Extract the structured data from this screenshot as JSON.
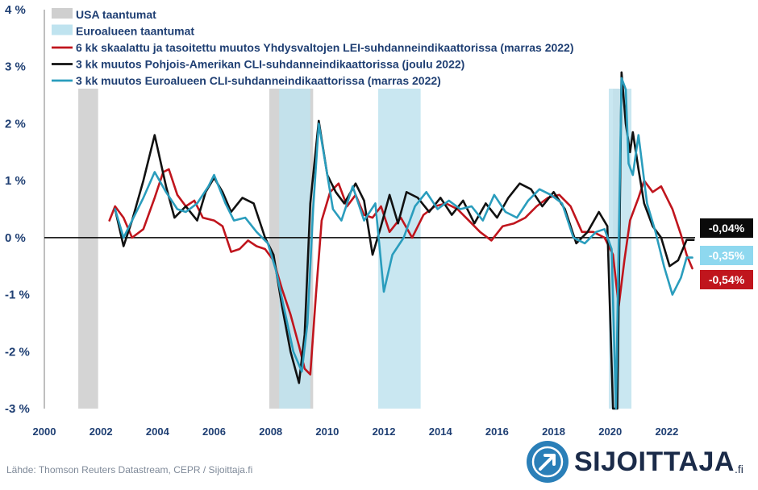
{
  "chart_data": {
    "type": "line",
    "x_range": [
      2000,
      2023
    ],
    "ylim": [
      -3,
      4
    ],
    "y_ticks": [
      {
        "value": 4,
        "label": "4 %"
      },
      {
        "value": 3,
        "label": "3 %"
      },
      {
        "value": 2,
        "label": "2 %"
      },
      {
        "value": 1,
        "label": "1 %"
      },
      {
        "value": 0,
        "label": "0 %"
      },
      {
        "value": -1,
        "label": "-1 %"
      },
      {
        "value": -2,
        "label": "-2 %"
      },
      {
        "value": -3,
        "label": "-3 %"
      }
    ],
    "x_ticks": [
      2000,
      2002,
      2004,
      2006,
      2008,
      2010,
      2012,
      2014,
      2016,
      2018,
      2020,
      2022
    ],
    "recessions": [
      {
        "name": "USA taantumat",
        "color": "#cfcfcf",
        "periods": [
          [
            2001.2,
            2001.9
          ],
          [
            2007.95,
            2009.5
          ],
          [
            2020.1,
            2020.35
          ]
        ]
      },
      {
        "name": "Euroalueen taantumat",
        "color": "#bfe3ef",
        "periods": [
          [
            2008.3,
            2009.4
          ],
          [
            2011.8,
            2013.3
          ],
          [
            2019.95,
            2020.75
          ]
        ]
      }
    ],
    "series": [
      {
        "name": "6 kk skaalattu ja tasoitettu muutos Yhdysvaltojen LEI-suhdanneindikaattorissa (marras 2022)",
        "color": "#c0151d",
        "x": [
          2002.3,
          2002.5,
          2002.8,
          2003.1,
          2003.5,
          2003.9,
          2004.2,
          2004.4,
          2004.7,
          2005.0,
          2005.3,
          2005.6,
          2006.0,
          2006.3,
          2006.6,
          2006.9,
          2007.2,
          2007.5,
          2007.8,
          2008.1,
          2008.4,
          2008.7,
          2009.0,
          2009.2,
          2009.4,
          2009.6,
          2009.8,
          2010.1,
          2010.4,
          2010.7,
          2011.0,
          2011.3,
          2011.6,
          2011.9,
          2012.2,
          2012.6,
          2013.0,
          2013.4,
          2013.8,
          2014.2,
          2014.6,
          2015.0,
          2015.4,
          2015.8,
          2016.2,
          2016.6,
          2017.0,
          2017.4,
          2017.8,
          2018.2,
          2018.6,
          2019.0,
          2019.4,
          2019.8,
          2020.1,
          2020.3,
          2020.5,
          2020.7,
          2021.0,
          2021.2,
          2021.5,
          2021.8,
          2022.2,
          2022.5,
          2022.7,
          2022.9
        ],
        "y": [
          0.3,
          0.55,
          0.35,
          0.0,
          0.15,
          0.7,
          1.15,
          1.2,
          0.75,
          0.55,
          0.65,
          0.35,
          0.3,
          0.2,
          -0.25,
          -0.2,
          -0.05,
          -0.15,
          -0.2,
          -0.4,
          -0.9,
          -1.35,
          -1.9,
          -2.3,
          -2.4,
          -1.0,
          0.3,
          0.8,
          0.95,
          0.55,
          0.75,
          0.4,
          0.35,
          0.55,
          0.1,
          0.35,
          0.0,
          0.4,
          0.55,
          0.6,
          0.5,
          0.3,
          0.1,
          -0.05,
          0.2,
          0.25,
          0.35,
          0.55,
          0.7,
          0.75,
          0.55,
          0.1,
          0.1,
          0.0,
          -0.3,
          -1.2,
          -0.4,
          0.3,
          0.7,
          1.0,
          0.8,
          0.9,
          0.5,
          0.05,
          -0.3,
          -0.54
        ]
      },
      {
        "name": "3 kk muutos Pohjois-Amerikan CLI-suhdanneindikaattorissa (joulu 2022)",
        "color": "#111111",
        "x": [
          2002.5,
          2002.8,
          2003.1,
          2003.5,
          2003.9,
          2004.3,
          2004.6,
          2005.0,
          2005.4,
          2005.7,
          2006.0,
          2006.3,
          2006.6,
          2007.0,
          2007.4,
          2007.8,
          2008.1,
          2008.4,
          2008.7,
          2009.0,
          2009.2,
          2009.4,
          2009.7,
          2010.0,
          2010.3,
          2010.6,
          2011.0,
          2011.3,
          2011.6,
          2011.9,
          2012.2,
          2012.5,
          2012.8,
          2013.2,
          2013.6,
          2014.0,
          2014.4,
          2014.8,
          2015.2,
          2015.6,
          2016.0,
          2016.4,
          2016.8,
          2017.2,
          2017.6,
          2018.0,
          2018.4,
          2018.8,
          2019.2,
          2019.6,
          2019.9,
          2020.1,
          2020.25,
          2020.4,
          2020.55,
          2020.7,
          2020.8,
          2021.0,
          2021.2,
          2021.5,
          2021.8,
          2022.1,
          2022.4,
          2022.7,
          2022.95
        ],
        "y": [
          0.5,
          -0.15,
          0.3,
          1.0,
          1.8,
          0.9,
          0.35,
          0.55,
          0.3,
          0.8,
          1.05,
          0.8,
          0.45,
          0.7,
          0.6,
          0.0,
          -0.3,
          -1.2,
          -2.0,
          -2.55,
          -1.7,
          0.6,
          2.05,
          1.1,
          0.8,
          0.6,
          0.95,
          0.65,
          -0.3,
          0.2,
          0.75,
          0.25,
          0.8,
          0.7,
          0.45,
          0.7,
          0.4,
          0.65,
          0.25,
          0.6,
          0.35,
          0.7,
          0.95,
          0.85,
          0.55,
          0.8,
          0.5,
          -0.1,
          0.1,
          0.45,
          0.2,
          -3.0,
          -3.0,
          2.9,
          2.0,
          1.5,
          1.85,
          1.2,
          0.6,
          0.2,
          0.0,
          -0.5,
          -0.4,
          -0.04,
          -0.04
        ]
      },
      {
        "name": "3 kk muutos Euroalueen CLI-suhdanneindikaattorissa (marras 2022)",
        "color": "#2a9dbd",
        "x": [
          2002.5,
          2002.8,
          2003.1,
          2003.5,
          2003.9,
          2004.3,
          2004.7,
          2005.0,
          2005.4,
          2005.8,
          2006.0,
          2006.4,
          2006.7,
          2007.1,
          2007.5,
          2007.9,
          2008.2,
          2008.5,
          2008.8,
          2009.1,
          2009.3,
          2009.5,
          2009.7,
          2009.9,
          2010.2,
          2010.5,
          2010.9,
          2011.3,
          2011.7,
          2012.0,
          2012.3,
          2012.7,
          2013.1,
          2013.5,
          2013.9,
          2014.3,
          2014.7,
          2015.1,
          2015.5,
          2015.9,
          2016.3,
          2016.7,
          2017.1,
          2017.5,
          2017.9,
          2018.3,
          2018.7,
          2019.1,
          2019.5,
          2019.8,
          2020.05,
          2020.2,
          2020.4,
          2020.55,
          2020.65,
          2020.8,
          2021.0,
          2021.3,
          2021.6,
          2021.9,
          2022.2,
          2022.5,
          2022.7,
          2022.9
        ],
        "y": [
          0.5,
          0.0,
          0.3,
          0.7,
          1.15,
          0.8,
          0.5,
          0.45,
          0.6,
          0.9,
          1.1,
          0.6,
          0.3,
          0.35,
          0.1,
          -0.1,
          -0.6,
          -1.3,
          -2.0,
          -2.35,
          -1.5,
          0.5,
          2.0,
          1.4,
          0.5,
          0.3,
          0.9,
          0.3,
          0.6,
          -0.95,
          -0.3,
          0.0,
          0.55,
          0.8,
          0.5,
          0.65,
          0.5,
          0.55,
          0.3,
          0.75,
          0.45,
          0.35,
          0.65,
          0.85,
          0.75,
          0.6,
          0.0,
          -0.1,
          0.1,
          0.15,
          -0.2,
          -3.0,
          2.8,
          2.6,
          1.3,
          1.1,
          1.8,
          0.6,
          0.1,
          -0.5,
          -1.0,
          -0.7,
          -0.35,
          -0.35
        ]
      }
    ],
    "end_labels": [
      {
        "text": "-0,04%",
        "value": -0.04,
        "bg": "#0a0a0a"
      },
      {
        "text": "-0,35%",
        "value": -0.35,
        "bg": "#8ed8ef"
      },
      {
        "text": "-0,54%",
        "value": -0.54,
        "bg": "#c0151d"
      }
    ]
  },
  "source": "Lähde: Thomson Reuters Datastream, CEPR / Sijoittaja.fi",
  "brand": {
    "name": "SIJOITTAJA",
    "tld": ".fi",
    "icon": "arrow-up-right-icon",
    "color": "#1b2b49",
    "accent": "#2a7fb8"
  }
}
